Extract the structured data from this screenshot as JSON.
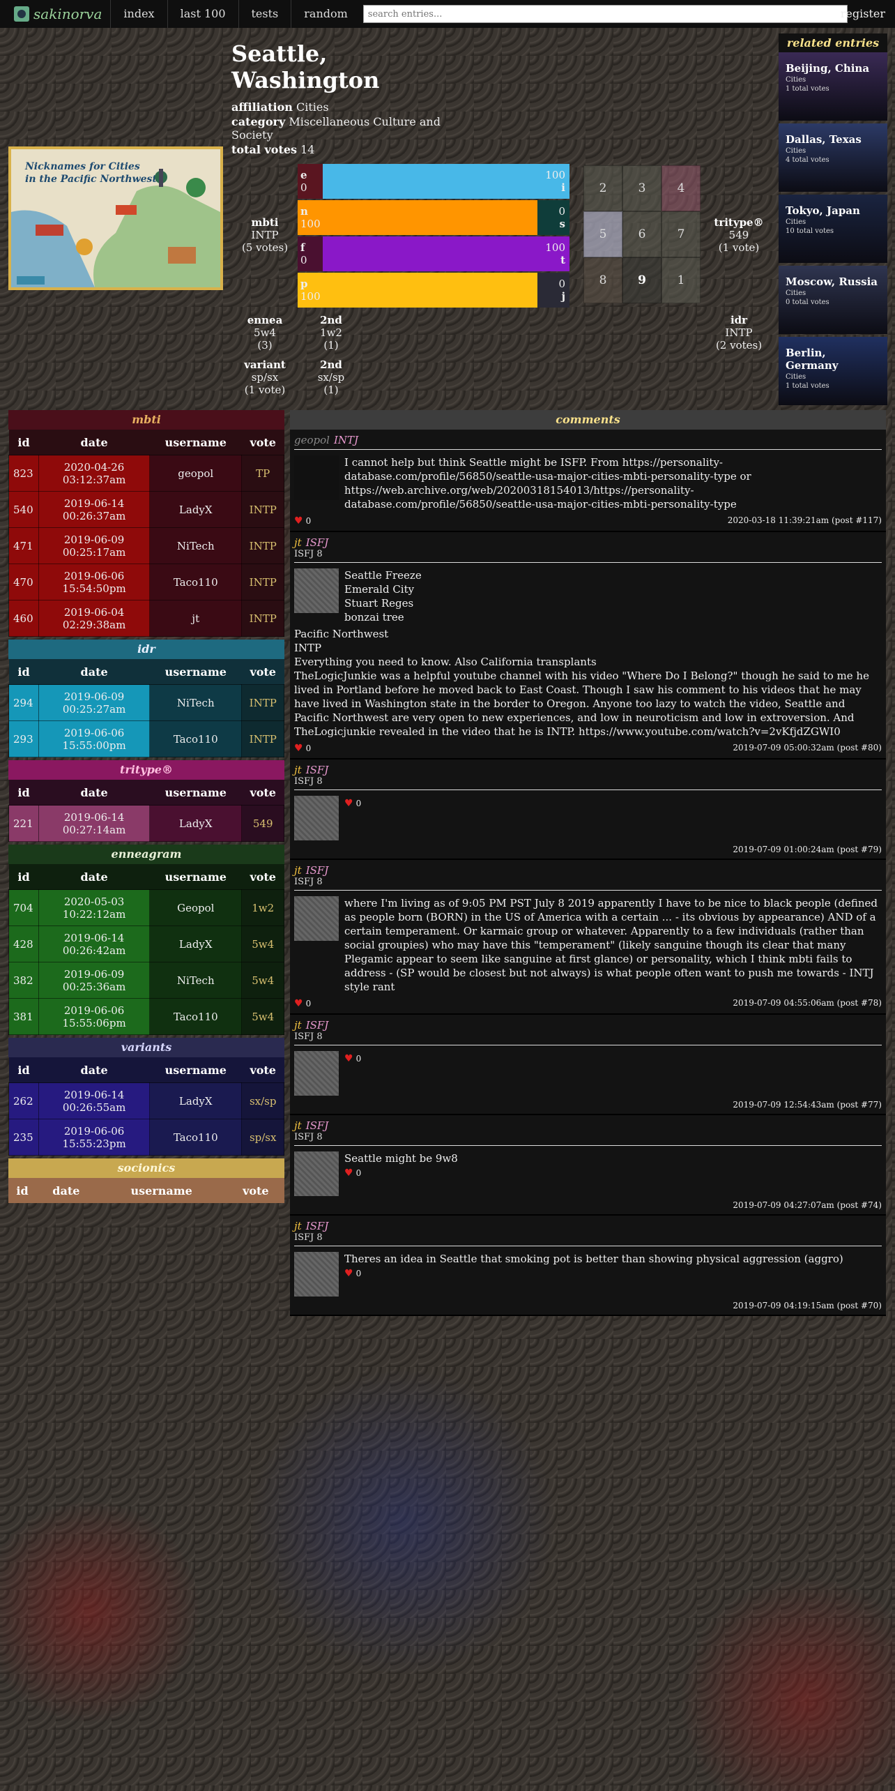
{
  "nav": {
    "logo_text": "sakinorva",
    "items": [
      "index",
      "last 100",
      "tests",
      "random"
    ],
    "search_placeholder": "search entries...",
    "register": "register"
  },
  "entry": {
    "title": "Seattle, Washington",
    "affiliation_label": "affiliation",
    "affiliation": "Cities",
    "category_label": "category",
    "category": "Miscellaneous Culture and Society",
    "total_votes_label": "total votes",
    "total_votes": "14"
  },
  "picture": {
    "title_line1": "Nicknames for Cities",
    "title_line2": "in the Pacific Northwest"
  },
  "related": {
    "heading": "related entries",
    "items": [
      {
        "name": "Beijing, China",
        "sub": "Cities",
        "votes": "1 total votes",
        "color": "#3a2a55"
      },
      {
        "name": "Dallas, Texas",
        "sub": "Cities",
        "votes": "4 total votes",
        "color": "#2c3a66"
      },
      {
        "name": "Tokyo, Japan",
        "sub": "Cities",
        "votes": "10 total votes",
        "color": "#1a2440"
      },
      {
        "name": "Moscow, Russia",
        "sub": "Cities",
        "votes": "0 total votes",
        "color": "#2f3550"
      },
      {
        "name": "Berlin, Germany",
        "sub": "Cities",
        "votes": "1 total votes",
        "color": "#203060"
      }
    ]
  },
  "mbti_summary": {
    "label": "mbti",
    "value": "INTP",
    "votes": "(5 votes)"
  },
  "tritype_summary": {
    "label": "tritype®",
    "value": "549",
    "votes": "(1 vote)"
  },
  "bars": [
    {
      "l": "e",
      "lv": "0",
      "r": "i",
      "rv": "100",
      "lcolor": "#5a1520",
      "fill": "#48b8e8",
      "rcolor": "#48b8e8",
      "lfrac": 0.0
    },
    {
      "l": "n",
      "lv": "100",
      "r": "s",
      "rv": "0",
      "lcolor": "#ff9500",
      "fill": "#ff9500",
      "rcolor": "#0f3d3a",
      "lfrac": 1.0
    },
    {
      "l": "f",
      "lv": "0",
      "r": "t",
      "rv": "100",
      "lcolor": "#4a1030",
      "fill": "#8a18c8",
      "rcolor": "#8a18c8",
      "lfrac": 0.0
    },
    {
      "l": "p",
      "lv": "100",
      "r": "j",
      "rv": "0",
      "lcolor": "#ffbf10",
      "fill": "#ffbf10",
      "rcolor": "#2a2a36",
      "lfrac": 1.0
    }
  ],
  "grid": [
    {
      "n": "2",
      "bold": false,
      "bg": "rgba(90,90,80,0.6)"
    },
    {
      "n": "3",
      "bold": false,
      "bg": "rgba(90,90,80,0.6)"
    },
    {
      "n": "4",
      "bold": false,
      "bg": "rgba(150,90,110,0.55)"
    },
    {
      "n": "5",
      "bold": false,
      "bg": "rgba(170,170,190,0.75)"
    },
    {
      "n": "6",
      "bold": false,
      "bg": "rgba(90,90,80,0.6)"
    },
    {
      "n": "7",
      "bold": false,
      "bg": "rgba(90,90,80,0.6)"
    },
    {
      "n": "8",
      "bold": false,
      "bg": "rgba(90,80,70,0.6)"
    },
    {
      "n": "9",
      "bold": true,
      "bg": "rgba(60,60,55,0.6)"
    },
    {
      "n": "1",
      "bold": false,
      "bg": "rgba(90,90,80,0.6)"
    }
  ],
  "lower_summary": {
    "ennea": {
      "label": "ennea",
      "value": "5w4",
      "votes": "(3)"
    },
    "ennea2": {
      "label": "2nd",
      "value": "1w2",
      "votes": "(1)"
    },
    "variant": {
      "label": "variant",
      "value": "sp/sx",
      "votes": "(1 vote)"
    },
    "variant2": {
      "label": "2nd",
      "value": "sx/sp",
      "votes": "(1)"
    },
    "idr": {
      "label": "idr",
      "value": "INTP",
      "votes": "(2 votes)"
    }
  },
  "tables": [
    {
      "title": "mbti",
      "head_bg": "#4a0f1a",
      "title_color": "#e8b060",
      "col_bg": "#2a0d12",
      "cell_bg": "#8f0a0a",
      "user_bg": "#3a0a14",
      "vote_bg": "#2a0d12",
      "vote_color": "#d8c070",
      "cols": [
        "id",
        "date",
        "username",
        "vote"
      ],
      "rows": [
        [
          "823",
          "2020-04-26",
          "03:12:37am",
          "geopol",
          "TP"
        ],
        [
          "540",
          "2019-06-14",
          "00:26:37am",
          "LadyX",
          "INTP"
        ],
        [
          "471",
          "2019-06-09",
          "00:25:17am",
          "NiTech",
          "INTP"
        ],
        [
          "470",
          "2019-06-06",
          "15:54:50pm",
          "Taco110",
          "INTP"
        ],
        [
          "460",
          "2019-06-04",
          "02:29:38am",
          "jt",
          "INTP"
        ]
      ]
    },
    {
      "title": "idr",
      "head_bg": "#1e6a80",
      "title_color": "#e8f0ff",
      "col_bg": "#10303a",
      "cell_bg": "#1597b8",
      "user_bg": "#0e3a46",
      "vote_bg": "#0e2a30",
      "vote_color": "#d8c070",
      "cols": [
        "id",
        "date",
        "username",
        "vote"
      ],
      "rows": [
        [
          "294",
          "2019-06-09",
          "00:25:27am",
          "NiTech",
          "INTP"
        ],
        [
          "293",
          "2019-06-06",
          "15:55:00pm",
          "Taco110",
          "INTP"
        ]
      ]
    },
    {
      "title": "tritype®",
      "head_bg": "#8a1860",
      "title_color": "#ffc0e0",
      "col_bg": "#2a0d20",
      "cell_bg": "#8a3a68",
      "user_bg": "#4a1030",
      "vote_bg": "#2a0d20",
      "vote_color": "#d8c070",
      "cols": [
        "id",
        "date",
        "username",
        "vote"
      ],
      "rows": [
        [
          "221",
          "2019-06-14",
          "00:27:14am",
          "LadyX",
          "549"
        ]
      ]
    },
    {
      "title": "enneagram",
      "head_bg": "#1a3a1a",
      "title_color": "#e8f0d8",
      "col_bg": "#0e200e",
      "cell_bg": "#1c6a1c",
      "user_bg": "#103010",
      "vote_bg": "#0e200e",
      "vote_color": "#d8c070",
      "cols": [
        "id",
        "date",
        "username",
        "vote"
      ],
      "rows": [
        [
          "704",
          "2020-05-03",
          "10:22:12am",
          "Geopol",
          "1w2"
        ],
        [
          "428",
          "2019-06-14",
          "00:26:42am",
          "LadyX",
          "5w4"
        ],
        [
          "382",
          "2019-06-09",
          "00:25:36am",
          "NiTech",
          "5w4"
        ],
        [
          "381",
          "2019-06-06",
          "15:55:06pm",
          "Taco110",
          "5w4"
        ]
      ]
    },
    {
      "title": "variants",
      "head_bg": "#2a2a50",
      "title_color": "#d8d8ff",
      "col_bg": "#15153a",
      "cell_bg": "#261a80",
      "user_bg": "#1a1a50",
      "vote_bg": "#15153a",
      "vote_color": "#d8c070",
      "cols": [
        "id",
        "date",
        "username",
        "vote"
      ],
      "rows": [
        [
          "262",
          "2019-06-14",
          "00:26:55am",
          "LadyX",
          "sx/sp"
        ],
        [
          "235",
          "2019-06-06",
          "15:55:23pm",
          "Taco110",
          "sp/sx"
        ]
      ]
    },
    {
      "title": "socionics",
      "head_bg": "#c8a850",
      "title_color": "#fff8d8",
      "col_bg": "#9a6a4a",
      "cell_bg": "#9a6a4a",
      "user_bg": "#9a6a4a",
      "vote_bg": "#9a6a4a",
      "vote_color": "#fff",
      "cols": [
        "id",
        "date",
        "username",
        "vote"
      ],
      "rows": []
    }
  ],
  "comments": {
    "heading": "comments",
    "posts": [
      {
        "user": "geopol",
        "type": "INTJ",
        "sub": "",
        "dark_avatar": true,
        "text": [
          "I cannot help but think Seattle might be ISFP. From https://personality-database.com/profile/56850/seattle-usa-major-cities-mbti-personality-type or https://web.archive.org/web/20200318154013/https://personality-database.com/profile/56850/seattle-usa-major-cities-mbti-personality-type"
        ],
        "full": [],
        "likes": "0",
        "heart_in_text": false,
        "time": "2020-03-18 11:39:21am (post #117)"
      },
      {
        "user": "jt",
        "type": "ISFJ",
        "sub": "ISFJ 8",
        "dark_avatar": false,
        "text": [
          "Seattle Freeze",
          "Emerald City",
          "Stuart Reges",
          "bonzai tree"
        ],
        "full": [
          "Pacific Northwest",
          "INTP",
          "Everything you need to know. Also California transplants",
          "TheLogicJunkie was a helpful youtube channel with his video \"Where Do I Belong?\" though he said to me he lived in Portland before he moved back to East Coast. Though I saw his comment to his videos that he may have lived in Washington state in the border to Oregon. Anyone too lazy to watch the video, Seattle and Pacific Northwest are very open to new experiences, and low in neuroticism and low in extroversion. And TheLogicjunkie revealed in the video that he is INTP. https://www.youtube.com/watch?v=2vKfjdZGWI0"
        ],
        "likes": "0",
        "heart_in_text": false,
        "time": "2019-07-09 05:00:32am (post #80)"
      },
      {
        "user": "jt",
        "type": "ISFJ",
        "sub": "ISFJ 8",
        "dark_avatar": false,
        "text": [],
        "full": [],
        "likes": "0",
        "heart_in_text": true,
        "time": "2019-07-09 01:00:24am (post #79)"
      },
      {
        "user": "jt",
        "type": "ISFJ",
        "sub": "ISFJ 8",
        "dark_avatar": false,
        "text": [
          "where I'm living as of 9:05 PM PST July 8 2019 apparently I have to be nice to black people (defined as people born (BORN) in the US of America with a certain ... - its obvious by appearance) AND of a certain temperament. Or karmaic group or whatever. Apparently to a few individuals (rather than social groupies) who may have this \"temperament\" (likely sanguine though its clear that many Plegamic appear to seem like sanguine at first glance) or personality, which I think mbti fails to address - (SP would be closest but not always) is what people often want to push me towards - INTJ style rant"
        ],
        "full": [],
        "likes": "0",
        "heart_in_text": false,
        "time": "2019-07-09 04:55:06am (post #78)"
      },
      {
        "user": "jt",
        "type": "ISFJ",
        "sub": "ISFJ 8",
        "dark_avatar": false,
        "text": [],
        "full": [],
        "likes": "0",
        "heart_in_text": true,
        "time": "2019-07-09 12:54:43am (post #77)"
      },
      {
        "user": "jt",
        "type": "ISFJ",
        "sub": "ISFJ 8",
        "dark_avatar": false,
        "text": [
          "Seattle might be 9w8"
        ],
        "full": [],
        "likes": "0",
        "heart_in_text": true,
        "time": "2019-07-09 04:27:07am (post #74)"
      },
      {
        "user": "jt",
        "type": "ISFJ",
        "sub": "ISFJ 8",
        "dark_avatar": false,
        "text": [
          "Theres an idea in Seattle that smoking pot is better than showing physical aggression (aggro)"
        ],
        "full": [],
        "likes": "0",
        "heart_in_text": true,
        "time": "2019-07-09 04:19:15am (post #70)"
      }
    ]
  }
}
